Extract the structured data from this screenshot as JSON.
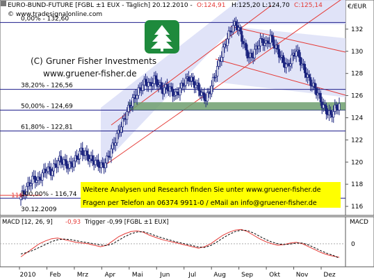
{
  "header": {
    "instrument": "EURO-BUND-FUTURE [FGBL ±1 EUX - Täglich] 20.12.2010 -",
    "open": "O:124,91",
    "high_low": "H:125,20 L:124,70",
    "close": "C:125,14",
    "unit": "€/EUR"
  },
  "source": "© www.tradesignalonline.com",
  "watermark": {
    "company": "Gruner Fisher Investments",
    "copyright_symbol": "(C)",
    "url": "www.gruener-fisher.de"
  },
  "banner": {
    "line1": "Weitere Analysen und Research finden Sie unter www.gruener-fisher.de",
    "line2": "Fragen per Telefon an 06374 9911-0 / eMail an info@gruener-fisher.de"
  },
  "fib_labels": [
    {
      "label": "0,00% - 132,60",
      "value": 132.6
    },
    {
      "label": "38,20% - 126,56",
      "value": 126.56
    },
    {
      "label": "50,00% - 124,69",
      "value": 124.69
    },
    {
      "label": "61,80% - 122,81",
      "value": 122.81
    },
    {
      "label": "100,00% - 116,74",
      "value": 116.74
    }
  ],
  "low_marker": {
    "label": "116",
    "date_label": "30.12.2009"
  },
  "macd": {
    "title": "MACD [12, 26, 9] ",
    "value": "-0,93",
    "trigger": "Trigger -0,99 [FGBL ±1 EUX]",
    "axis_label": "MACD",
    "zero_label": "0"
  },
  "colors": {
    "candle": "#1a237e",
    "channel_fill": "#dde0f7",
    "channel_line": "#e53935",
    "support_zone": "#6f9f6f",
    "fib_line": "#1c1c8a",
    "banner_bg": "#ffff00",
    "macd_line": "#e53935",
    "trigger_line": "#000000",
    "logo_green": "#1e8a3c"
  },
  "chart_data": {
    "type": "line",
    "subtype": "candlestick_ohlc",
    "ylim": [
      115.5,
      133.5
    ],
    "y_ticks": [
      116,
      118,
      120,
      122,
      124,
      126,
      128,
      130,
      132
    ],
    "x_labels": [
      "2010",
      "Feb",
      "Mrz",
      "Apr",
      "Mai",
      "Jun",
      "Jul",
      "Aug",
      "Sep",
      "Okt",
      "Nov",
      "Dez"
    ],
    "series": [
      {
        "name": "EURO-BUND-FUTURE close (approx.)",
        "values": [
          116.9,
          117.4,
          118.1,
          118.6,
          118.3,
          118.9,
          119.4,
          119.1,
          119.7,
          120.2,
          120.0,
          119.6,
          119.9,
          120.4,
          121.0,
          120.7,
          120.3,
          120.1,
          119.8,
          119.6,
          120.2,
          121.1,
          122.0,
          123.0,
          123.9,
          124.8,
          125.6,
          126.2,
          126.8,
          127.3,
          126.9,
          127.5,
          127.0,
          126.5,
          126.8,
          126.4,
          126.0,
          126.6,
          127.2,
          127.6,
          127.2,
          126.8,
          126.1,
          125.7,
          126.5,
          127.7,
          128.9,
          130.1,
          131.2,
          132.1,
          132.5,
          131.6,
          130.4,
          129.4,
          129.7,
          130.5,
          131.0,
          130.6,
          131.3,
          130.5,
          129.8,
          129.0,
          128.6,
          129.4,
          130.1,
          129.1,
          128.2,
          127.4,
          126.8,
          126.2,
          125.2,
          124.6,
          124.2,
          124.8,
          125.14
        ]
      }
    ],
    "fib_levels": [
      132.6,
      126.56,
      124.69,
      122.81,
      116.74
    ],
    "support_zone": [
      124.69,
      125.4
    ],
    "macd": {
      "ylim": [
        -1.4,
        1.2
      ],
      "series": [
        {
          "name": "MACD",
          "values": [
            -0.9,
            -0.6,
            -0.3,
            0.0,
            0.2,
            0.35,
            0.4,
            0.3,
            0.2,
            0.1,
            0.05,
            0.0,
            -0.1,
            -0.2,
            -0.1,
            0.2,
            0.5,
            0.7,
            0.85,
            0.9,
            0.8,
            0.6,
            0.45,
            0.3,
            0.2,
            0.1,
            0.0,
            -0.1,
            -0.2,
            -0.3,
            -0.2,
            0.0,
            0.3,
            0.6,
            0.8,
            0.95,
            1.0,
            0.85,
            0.6,
            0.35,
            0.15,
            0.0,
            -0.1,
            -0.05,
            0.05,
            0.1,
            0.0,
            -0.2,
            -0.4,
            -0.6,
            -0.75,
            -0.85,
            -0.93
          ]
        },
        {
          "name": "Trigger",
          "values": [
            -0.7,
            -0.6,
            -0.45,
            -0.25,
            -0.05,
            0.15,
            0.28,
            0.33,
            0.3,
            0.22,
            0.14,
            0.07,
            0.0,
            -0.08,
            -0.12,
            0.0,
            0.25,
            0.5,
            0.7,
            0.82,
            0.84,
            0.72,
            0.56,
            0.42,
            0.3,
            0.18,
            0.08,
            -0.02,
            -0.12,
            -0.22,
            -0.25,
            -0.12,
            0.12,
            0.4,
            0.65,
            0.85,
            0.95,
            0.92,
            0.75,
            0.52,
            0.3,
            0.12,
            0.0,
            -0.05,
            -0.02,
            0.05,
            0.05,
            -0.08,
            -0.28,
            -0.48,
            -0.66,
            -0.8,
            -0.99
          ]
        }
      ]
    }
  }
}
